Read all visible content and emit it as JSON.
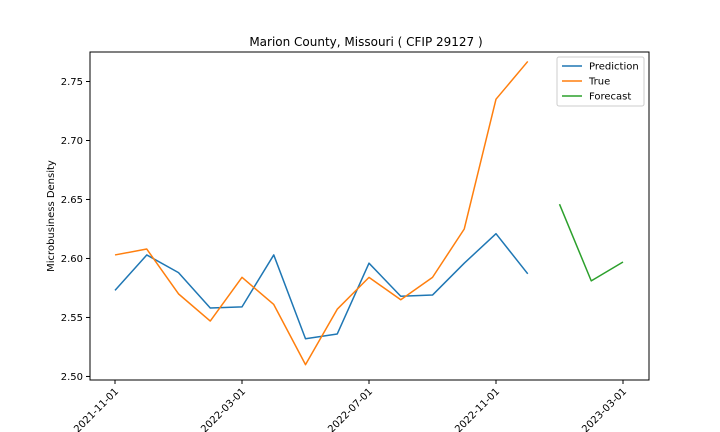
{
  "chart_data": {
    "type": "line",
    "title": "Marion County, Missouri ( CFIP 29127 )",
    "xlabel": "",
    "ylabel": "Microbusiness Density",
    "x_dates": [
      "2021-11-01",
      "2021-12-01",
      "2022-01-01",
      "2022-02-01",
      "2022-03-01",
      "2022-04-01",
      "2022-05-01",
      "2022-06-01",
      "2022-07-01",
      "2022-08-01",
      "2022-09-01",
      "2022-10-01",
      "2022-11-01",
      "2022-12-01",
      "2023-01-01",
      "2023-02-01",
      "2023-03-01"
    ],
    "xticks": [
      "2021-11-01",
      "2022-03-01",
      "2022-07-01",
      "2022-11-01",
      "2023-03-01"
    ],
    "yticks": [
      "2.50",
      "2.55",
      "2.60",
      "2.65",
      "2.70",
      "2.75"
    ],
    "ylim": [
      2.497,
      2.775
    ],
    "legend_position": "top-right",
    "grid": false,
    "series": [
      {
        "name": "Prediction",
        "color": "#1f77b4",
        "x": [
          "2021-11-01",
          "2021-12-01",
          "2022-01-01",
          "2022-02-01",
          "2022-03-01",
          "2022-04-01",
          "2022-05-01",
          "2022-06-01",
          "2022-07-01",
          "2022-08-01",
          "2022-09-01",
          "2022-10-01",
          "2022-11-01",
          "2022-12-01"
        ],
        "values": [
          2.573,
          2.603,
          2.588,
          2.558,
          2.559,
          2.603,
          2.532,
          2.536,
          2.596,
          2.568,
          2.569,
          2.596,
          2.621,
          2.587
        ]
      },
      {
        "name": "True",
        "color": "#ff7f0e",
        "x": [
          "2021-11-01",
          "2021-12-01",
          "2022-01-01",
          "2022-02-01",
          "2022-03-01",
          "2022-04-01",
          "2022-05-01",
          "2022-06-01",
          "2022-07-01",
          "2022-08-01",
          "2022-09-01",
          "2022-10-01",
          "2022-11-01",
          "2022-12-01"
        ],
        "values": [
          2.603,
          2.608,
          2.57,
          2.547,
          2.584,
          2.561,
          2.51,
          2.557,
          2.584,
          2.565,
          2.584,
          2.625,
          2.735,
          2.767
        ]
      },
      {
        "name": "Forecast",
        "color": "#2ca02c",
        "x": [
          "2023-01-01",
          "2023-02-01",
          "2023-03-01"
        ],
        "values": [
          2.646,
          2.581,
          2.597
        ]
      }
    ]
  }
}
